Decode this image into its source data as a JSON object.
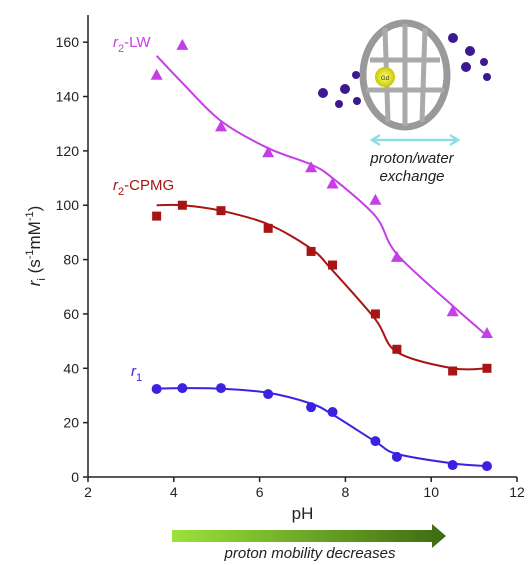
{
  "chart_data": {
    "type": "scatter",
    "xlabel": "pH",
    "ylabel": [
      "r",
      "i",
      " (s",
      "-1",
      "mM",
      "-1",
      ")"
    ],
    "xlim": [
      2,
      12
    ],
    "xticks": [
      2,
      4,
      6,
      8,
      10,
      12
    ],
    "ylim": [
      0,
      170
    ],
    "yticks": [
      0,
      20,
      40,
      60,
      80,
      100,
      120,
      140,
      160
    ],
    "x": [
      3.6,
      4.2,
      5.1,
      6.2,
      7.2,
      7.7,
      8.7,
      9.2,
      10.5,
      11.3
    ],
    "series": [
      {
        "name": "r2-LW",
        "color": "#c63fe6",
        "marker": "triangle",
        "values": [
          148,
          159,
          129,
          119.5,
          114,
          108,
          102,
          81,
          61,
          53
        ],
        "fit_values": [
          155,
          145,
          131,
          121,
          115,
          110,
          96,
          82,
          63,
          52
        ]
      },
      {
        "name": "r2-CPMG",
        "color": "#a81414",
        "marker": "square",
        "values": [
          96,
          100,
          98,
          91.5,
          83,
          78,
          60,
          47,
          39,
          40
        ],
        "fit_values": [
          100,
          100,
          98,
          93,
          84,
          76,
          58,
          46,
          40,
          40
        ]
      },
      {
        "name": "r1",
        "color": "#3a22e0",
        "marker": "circle",
        "values": [
          32.4,
          32.7,
          32.7,
          30.5,
          25.7,
          23.9,
          13.2,
          7.4,
          4.4,
          4
        ],
        "fit_values": [
          32.5,
          32.7,
          32.5,
          31,
          27,
          23,
          13,
          8.5,
          5,
          4
        ]
      }
    ],
    "annotations": {
      "inset_label": "Gd",
      "exchange": [
        "proton/water",
        "exchange"
      ],
      "arrow": "proton mobility decreases"
    }
  }
}
